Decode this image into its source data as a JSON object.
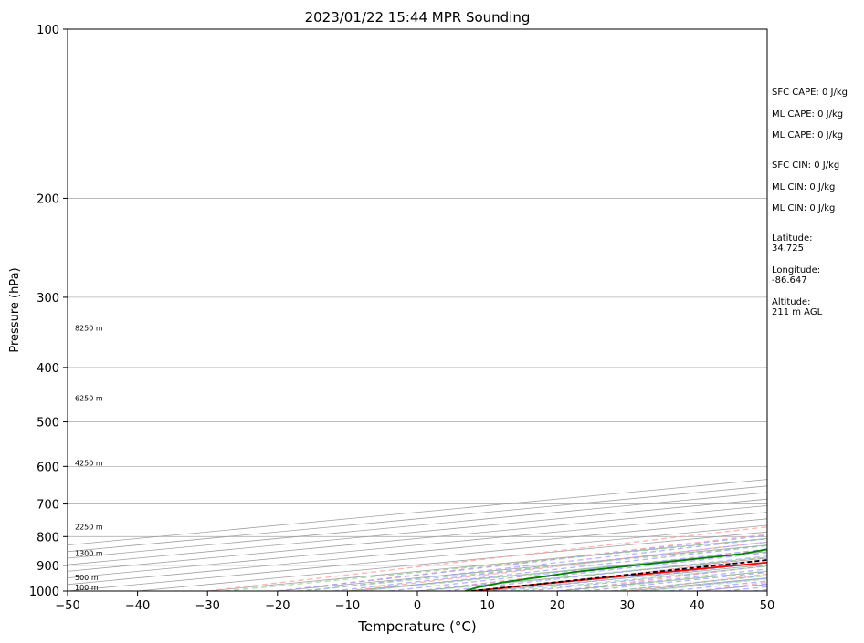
{
  "chart_data": {
    "type": "line",
    "subtype": "skew-t log-p sounding",
    "title": "2023/01/22 15:44 MPR Sounding",
    "xlabel": "Temperature (°C)",
    "ylabel": "Pressure (hPa)",
    "xlim": [
      -50,
      50
    ],
    "ylim": [
      1000,
      100
    ],
    "y_scale": "log",
    "grid": true,
    "x_ticks": [
      "−50",
      "−40",
      "−30",
      "−20",
      "−10",
      "0",
      "10",
      "20",
      "30",
      "40",
      "50"
    ],
    "y_ticks": [
      "100",
      "200",
      "300",
      "400",
      "500",
      "600",
      "700",
      "800",
      "900",
      "1000"
    ],
    "height_labels": [
      {
        "p": 1000,
        "label": "100 m"
      },
      {
        "p": 960,
        "label": "500 m"
      },
      {
        "p": 870,
        "label": "1300 m"
      },
      {
        "p": 780,
        "label": "2250 m"
      },
      {
        "p": 600,
        "label": "4250 m"
      },
      {
        "p": 460,
        "label": "6250 m"
      },
      {
        "p": 345,
        "label": "8250 m"
      }
    ],
    "series": [
      {
        "role": "temperature",
        "color": "#ff0000",
        "points": [
          [
            1000,
            7.7
          ],
          [
            990,
            7.8
          ],
          [
            975,
            7.0
          ],
          [
            950,
            6.7
          ],
          [
            925,
            6.6
          ],
          [
            900,
            6.6
          ],
          [
            875,
            6.6
          ],
          [
            850,
            6.6
          ],
          [
            800,
            6.0
          ],
          [
            750,
            5.0
          ],
          [
            700,
            3.5
          ],
          [
            650,
            1.5
          ],
          [
            600,
            -1.0
          ],
          [
            550,
            -4.5
          ],
          [
            500,
            -8.0
          ],
          [
            450,
            -11.5
          ],
          [
            400,
            -15.5
          ],
          [
            350,
            -19.5
          ],
          [
            300,
            -23.5
          ],
          [
            280,
            -25.3
          ],
          [
            265,
            -26.3
          ]
        ]
      },
      {
        "role": "dewpoint",
        "color": "#008000",
        "points": [
          [
            1000,
            6.8
          ],
          [
            985,
            3.0
          ],
          [
            965,
            -1.0
          ],
          [
            950,
            -3.0
          ],
          [
            925,
            -6.5
          ],
          [
            900,
            -8.0
          ],
          [
            880,
            -9.0
          ],
          [
            860,
            -10.0
          ],
          [
            845,
            -13.0
          ],
          [
            835,
            -14.5
          ],
          [
            820,
            -11.0
          ],
          [
            810,
            -9.5
          ],
          [
            800,
            -11.0
          ],
          [
            780,
            -9.5
          ],
          [
            750,
            -6.5
          ],
          [
            720,
            -3.5
          ],
          [
            700,
            -3.0
          ],
          [
            680,
            -3.5
          ],
          [
            650,
            -5.0
          ],
          [
            630,
            -5.5
          ],
          [
            610,
            -4.0
          ],
          [
            590,
            -1.5
          ],
          [
            570,
            -2.0
          ],
          [
            540,
            -5.0
          ],
          [
            520,
            -4.0
          ],
          [
            500,
            -6.5
          ],
          [
            480,
            -7.5
          ],
          [
            460,
            -7.8
          ],
          [
            440,
            -10.0
          ],
          [
            420,
            -13.0
          ],
          [
            400,
            -15.0
          ],
          [
            380,
            -16.5
          ],
          [
            360,
            -19.5
          ],
          [
            340,
            -21.0
          ],
          [
            320,
            -22.5
          ],
          [
            305,
            -24.5
          ],
          [
            290,
            -28.0
          ],
          [
            280,
            -30.5
          ],
          [
            270,
            -32.0
          ],
          [
            265,
            -32.2
          ],
          [
            255,
            -31.5
          ]
        ]
      },
      {
        "role": "parcel profile",
        "color": "#000000",
        "style": "dashed",
        "points": [
          [
            1000,
            7.7
          ],
          [
            950,
            5.8
          ],
          [
            900,
            3.7
          ],
          [
            850,
            1.4
          ],
          [
            800,
            -1.1
          ],
          [
            750,
            -3.7
          ],
          [
            700,
            -6.4
          ],
          [
            650,
            -9.3
          ],
          [
            600,
            -12.4
          ],
          [
            550,
            -16.0
          ],
          [
            500,
            -20.0
          ],
          [
            450,
            -24.6
          ],
          [
            400,
            -29.7
          ],
          [
            350,
            -35.6
          ],
          [
            300,
            -42.5
          ],
          [
            265,
            -47.8
          ]
        ]
      }
    ],
    "reference_lines": {
      "isotherms_color": "#a0a0a0",
      "dry_adiabats_color": "#ff9999",
      "moist_adiabats_color": "#9999ff",
      "mixing_ratio_color": "#88cc88"
    },
    "annotations": [
      "SFC CAPE: 0 J/kg",
      "ML CAPE: 0 J/kg",
      "ML CAPE: 0 J/kg",
      "SFC CIN: 0 J/kg",
      "ML CIN: 0 J/kg",
      "ML CIN: 0 J/kg",
      "Latitude:",
      "34.725",
      "Longitude:",
      "-86.647",
      "Altitude:",
      "211 m AGL"
    ]
  }
}
